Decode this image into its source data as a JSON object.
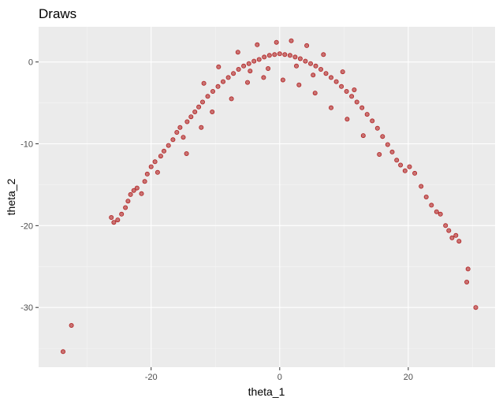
{
  "chart_data": {
    "type": "scatter",
    "title": "Draws",
    "xlabel": "theta_1",
    "ylabel": "theta_2",
    "xlim": [
      -37.5,
      33.5
    ],
    "ylim": [
      -37.3,
      4.3
    ],
    "x_ticks": [
      -20,
      0,
      20
    ],
    "y_ticks": [
      0,
      -10,
      -20,
      -30
    ],
    "x_tick_labels": [
      "-20",
      "0",
      "20"
    ],
    "y_tick_labels": [
      "0",
      "-10",
      "-20",
      "-30"
    ],
    "grid": true,
    "legend": "none",
    "point_color": "#b22222",
    "panel_background": "#ebebeb",
    "series": [
      {
        "points": [
          [
            -33.7,
            -35.4
          ],
          [
            -32.4,
            -32.2
          ],
          [
            -26.2,
            -19.0
          ],
          [
            -25.8,
            -19.6
          ],
          [
            -25.2,
            -19.3
          ],
          [
            -24.6,
            -18.6
          ],
          [
            -24.0,
            -17.8
          ],
          [
            -23.6,
            -17.0
          ],
          [
            -23.2,
            -16.2
          ],
          [
            -22.7,
            -15.7
          ],
          [
            -22.2,
            -15.4
          ],
          [
            -21.5,
            -16.1
          ],
          [
            -21.0,
            -14.6
          ],
          [
            -20.6,
            -13.7
          ],
          [
            -20.0,
            -12.8
          ],
          [
            -19.4,
            -12.2
          ],
          [
            -19.0,
            -13.5
          ],
          [
            -18.5,
            -11.5
          ],
          [
            -18.0,
            -10.9
          ],
          [
            -17.3,
            -10.2
          ],
          [
            -16.6,
            -9.5
          ],
          [
            -16.0,
            -8.6
          ],
          [
            -15.5,
            -8.0
          ],
          [
            -15.0,
            -9.2
          ],
          [
            -14.4,
            -7.3
          ],
          [
            -13.8,
            -6.7
          ],
          [
            -13.2,
            -6.1
          ],
          [
            -12.6,
            -5.5
          ],
          [
            -12.0,
            -4.9
          ],
          [
            -11.2,
            -4.2
          ],
          [
            -10.4,
            -3.6
          ],
          [
            -9.6,
            -3.0
          ],
          [
            -8.8,
            -2.4
          ],
          [
            -8.0,
            -1.9
          ],
          [
            -7.2,
            -1.4
          ],
          [
            -6.4,
            -0.9
          ],
          [
            -5.6,
            -0.5
          ],
          [
            -4.8,
            -0.2
          ],
          [
            -4.0,
            0.1
          ],
          [
            -3.2,
            0.3
          ],
          [
            -2.4,
            0.6
          ],
          [
            -1.6,
            0.8
          ],
          [
            -0.8,
            0.9
          ],
          [
            0.0,
            1.0
          ],
          [
            0.8,
            0.9
          ],
          [
            1.6,
            0.8
          ],
          [
            2.4,
            0.6
          ],
          [
            3.2,
            0.4
          ],
          [
            4.0,
            0.1
          ],
          [
            4.8,
            -0.2
          ],
          [
            5.6,
            -0.5
          ],
          [
            6.4,
            -0.9
          ],
          [
            7.2,
            -1.4
          ],
          [
            8.0,
            -1.9
          ],
          [
            8.8,
            -2.4
          ],
          [
            9.6,
            -3.0
          ],
          [
            10.4,
            -3.6
          ],
          [
            11.2,
            -4.2
          ],
          [
            12.0,
            -4.9
          ],
          [
            12.8,
            -5.6
          ],
          [
            13.6,
            -6.4
          ],
          [
            14.4,
            -7.2
          ],
          [
            15.2,
            -8.1
          ],
          [
            16.0,
            -9.1
          ],
          [
            16.8,
            -10.1
          ],
          [
            17.5,
            -11.0
          ],
          [
            18.2,
            -12.0
          ],
          [
            18.8,
            -12.6
          ],
          [
            19.5,
            -13.3
          ],
          [
            20.2,
            -12.8
          ],
          [
            21.0,
            -13.6
          ],
          [
            22.0,
            -15.2
          ],
          [
            22.8,
            -16.5
          ],
          [
            23.6,
            -17.5
          ],
          [
            24.4,
            -18.3
          ],
          [
            25.0,
            -18.6
          ],
          [
            25.8,
            -20.0
          ],
          [
            26.3,
            -20.6
          ],
          [
            26.8,
            -21.5
          ],
          [
            27.4,
            -21.2
          ],
          [
            27.9,
            -21.9
          ],
          [
            29.3,
            -25.3
          ],
          [
            29.1,
            -26.9
          ],
          [
            30.5,
            -30.0
          ],
          [
            -14.5,
            -11.2
          ],
          [
            -12.2,
            -8.0
          ],
          [
            -10.5,
            -6.1
          ],
          [
            -7.5,
            -4.5
          ],
          [
            -5.0,
            -2.5
          ],
          [
            -2.5,
            -1.9
          ],
          [
            0.5,
            -2.2
          ],
          [
            3.0,
            -2.8
          ],
          [
            5.5,
            -3.8
          ],
          [
            8.0,
            -5.6
          ],
          [
            10.5,
            -7.0
          ],
          [
            13.0,
            -9.0
          ],
          [
            15.5,
            -11.3
          ],
          [
            -3.5,
            2.1
          ],
          [
            -0.5,
            2.4
          ],
          [
            1.8,
            2.6
          ],
          [
            4.2,
            2.0
          ],
          [
            -6.5,
            1.2
          ],
          [
            6.8,
            0.9
          ],
          [
            -9.5,
            -0.6
          ],
          [
            9.8,
            -1.2
          ],
          [
            -1.8,
            -0.8
          ],
          [
            2.6,
            -0.5
          ],
          [
            -4.6,
            -1.1
          ],
          [
            5.2,
            -1.6
          ],
          [
            -11.8,
            -2.6
          ],
          [
            11.6,
            -3.4
          ]
        ]
      }
    ]
  }
}
